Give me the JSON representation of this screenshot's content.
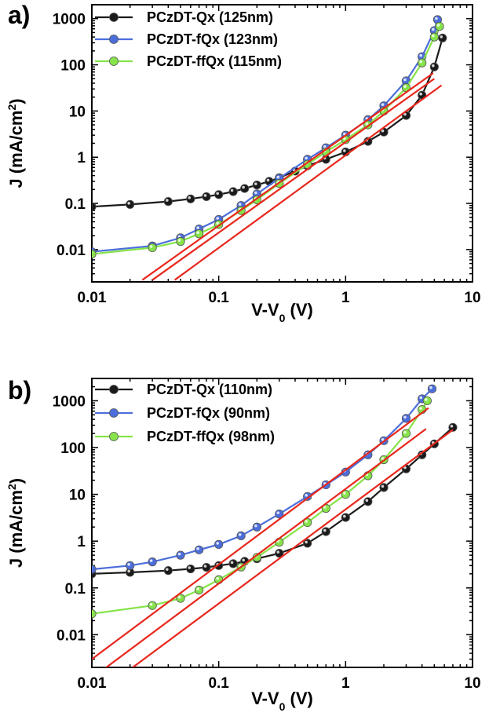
{
  "chart_data": [
    {
      "type": "line",
      "panel_label": "a)",
      "xlabel": {
        "main": "V-V",
        "sub": "0",
        "tail": " (V)"
      },
      "ylabel": {
        "main": "J (mA/cm",
        "sup": "2",
        "tail": ")"
      },
      "x_scale": "log",
      "y_scale": "log",
      "xlim": [
        0.01,
        10
      ],
      "ylim": [
        0.002,
        2000
      ],
      "x_ticks": [
        0.01,
        0.1,
        1,
        10
      ],
      "x_tick_labels": [
        "0.01",
        "0.1",
        "1",
        "10"
      ],
      "y_ticks": [
        0.01,
        0.1,
        1,
        10,
        100,
        1000
      ],
      "y_tick_labels": [
        "0.01",
        "0.1",
        "1",
        "10",
        "100",
        "1000"
      ],
      "legend_position": "top-left",
      "series": [
        {
          "name": "PCzDT-Qx (125nm)",
          "color": "#1a1a1a",
          "x": [
            0.01,
            0.02,
            0.04,
            0.06,
            0.08,
            0.1,
            0.13,
            0.16,
            0.2,
            0.25,
            0.3,
            0.4,
            0.5,
            0.7,
            1.0,
            1.5,
            2.0,
            3.0,
            4.0,
            5.0,
            5.8
          ],
          "y": [
            0.085,
            0.095,
            0.11,
            0.125,
            0.14,
            0.155,
            0.18,
            0.21,
            0.25,
            0.3,
            0.36,
            0.5,
            0.65,
            0.9,
            1.3,
            2.2,
            3.5,
            8,
            22,
            90,
            380
          ]
        },
        {
          "name": "PCzDT-fQx (123nm)",
          "color": "#4c6edb",
          "x": [
            0.01,
            0.03,
            0.05,
            0.07,
            0.1,
            0.15,
            0.2,
            0.3,
            0.5,
            0.7,
            1.0,
            1.5,
            2.0,
            3.0,
            4.0,
            5.0,
            5.3
          ],
          "y": [
            0.009,
            0.012,
            0.018,
            0.028,
            0.045,
            0.09,
            0.16,
            0.35,
            0.9,
            1.6,
            3.0,
            6.5,
            13,
            45,
            150,
            550,
            950
          ]
        },
        {
          "name": "PCzDT-ffQx (115nm)",
          "color": "#86e34a",
          "x": [
            0.01,
            0.03,
            0.05,
            0.07,
            0.1,
            0.15,
            0.2,
            0.3,
            0.5,
            0.7,
            1.0,
            1.5,
            2.0,
            3.0,
            4.0,
            5.0,
            5.5
          ],
          "y": [
            0.008,
            0.011,
            0.015,
            0.022,
            0.035,
            0.07,
            0.12,
            0.27,
            0.7,
            1.3,
            2.4,
            5,
            10,
            32,
            110,
            400,
            680
          ]
        }
      ],
      "fit_lines": [
        {
          "color": "#e8271c",
          "x": [
            0.025,
            4.9
          ],
          "y": [
            0.0022,
            66
          ]
        },
        {
          "color": "#e8271c",
          "x": [
            0.045,
            5.7
          ],
          "y": [
            0.0022,
            36
          ]
        },
        {
          "color": "#e8271c",
          "x": [
            0.03,
            5.0
          ],
          "y": [
            0.0022,
            50
          ]
        }
      ]
    },
    {
      "type": "line",
      "panel_label": "b)",
      "xlabel": {
        "main": "V-V",
        "sub": "0",
        "tail": " (V)"
      },
      "ylabel": {
        "main": "J (mA/cm",
        "sup": "2",
        "tail": ")"
      },
      "x_scale": "log",
      "y_scale": "log",
      "xlim": [
        0.01,
        10
      ],
      "ylim": [
        0.002,
        3000
      ],
      "x_ticks": [
        0.01,
        0.1,
        1,
        10
      ],
      "x_tick_labels": [
        "0.01",
        "0.1",
        "1",
        "10"
      ],
      "y_ticks": [
        0.01,
        0.1,
        1,
        10,
        100,
        1000
      ],
      "y_tick_labels": [
        "0.01",
        "0.1",
        "1",
        "10",
        "100",
        "1000"
      ],
      "legend_position": "top-left",
      "series": [
        {
          "name": "PCzDT-Qx (110nm)",
          "color": "#1a1a1a",
          "x": [
            0.01,
            0.02,
            0.04,
            0.06,
            0.08,
            0.1,
            0.13,
            0.16,
            0.2,
            0.3,
            0.5,
            0.7,
            1.0,
            1.5,
            2.0,
            3.0,
            4.0,
            5.0,
            7.0
          ],
          "y": [
            0.2,
            0.215,
            0.235,
            0.255,
            0.275,
            0.3,
            0.33,
            0.37,
            0.42,
            0.55,
            0.9,
            1.6,
            3.2,
            7,
            14,
            35,
            70,
            120,
            270
          ]
        },
        {
          "name": "PCzDT-fQx (90nm)",
          "color": "#4c6edb",
          "x": [
            0.01,
            0.02,
            0.03,
            0.05,
            0.07,
            0.1,
            0.15,
            0.2,
            0.3,
            0.5,
            0.7,
            1.0,
            1.5,
            2.0,
            3.0,
            4.0,
            4.8
          ],
          "y": [
            0.25,
            0.3,
            0.36,
            0.5,
            0.65,
            0.85,
            1.3,
            2.0,
            3.8,
            9,
            16,
            30,
            70,
            140,
            420,
            1100,
            1800
          ]
        },
        {
          "name": "PCzDT-ffQx (98nm)",
          "color": "#86e34a",
          "x": [
            0.01,
            0.03,
            0.05,
            0.07,
            0.1,
            0.15,
            0.2,
            0.3,
            0.5,
            0.7,
            1.0,
            1.5,
            2.0,
            3.0,
            4.0,
            4.4
          ],
          "y": [
            0.028,
            0.042,
            0.06,
            0.09,
            0.15,
            0.28,
            0.45,
            0.95,
            2.5,
            5,
            10,
            25,
            55,
            200,
            650,
            1000
          ]
        }
      ],
      "fit_lines": [
        {
          "color": "#e8271c",
          "x": [
            0.01,
            4.5
          ],
          "y": [
            0.003,
            700
          ]
        },
        {
          "color": "#e8271c",
          "x": [
            0.013,
            4.3
          ],
          "y": [
            0.002,
            250
          ]
        },
        {
          "color": "#e8271c",
          "x": [
            0.021,
            7.0
          ],
          "y": [
            0.002,
            240
          ]
        }
      ]
    }
  ]
}
